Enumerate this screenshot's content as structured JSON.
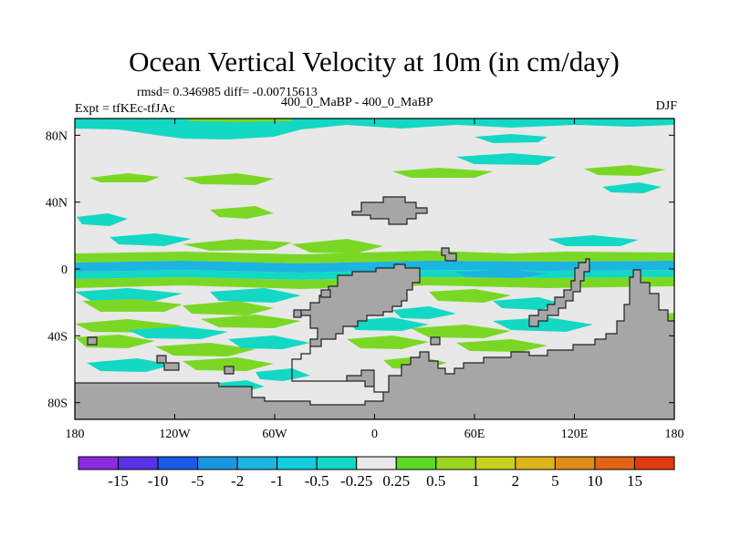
{
  "title": "Ocean Vertical Velocity at 10m (in cm/day)",
  "stats_line": "rmsd= 0.346985 diff= -0.00715613",
  "experiment": "Expt = tfKEc-tfJAc",
  "periods": "400_0_MaBP - 400_0_MaBP",
  "season": "DJF",
  "map": {
    "lon_range": [
      -180,
      180
    ],
    "lat_range": [
      -90,
      90
    ],
    "x_ticks": [
      {
        "lon": -180,
        "label": "180"
      },
      {
        "lon": -120,
        "label": "120W"
      },
      {
        "lon": -60,
        "label": "60W"
      },
      {
        "lon": 0,
        "label": "0"
      },
      {
        "lon": 60,
        "label": "60E"
      },
      {
        "lon": 120,
        "label": "120E"
      },
      {
        "lon": 180,
        "label": "180"
      }
    ],
    "y_ticks": [
      {
        "lat": 80,
        "label": "80N"
      },
      {
        "lat": 40,
        "label": "40N"
      },
      {
        "lat": 0,
        "label": "0"
      },
      {
        "lat": -40,
        "label": "40S"
      },
      {
        "lat": -80,
        "label": "80S"
      }
    ],
    "colors": {
      "land": "#a6a6a6",
      "background": "#e8e8e8",
      "weak_neg": "#12d8c4",
      "mid_neg": "#1cb4e0",
      "strong_neg": "#1874e8",
      "weak_pos": "#7ad825",
      "mid_pos": "#c8d21c"
    }
  },
  "colorbar": {
    "labels": [
      "-15",
      "-10",
      "-5",
      "-2",
      "-1",
      "-0.5",
      "-0.25",
      "0.25",
      "0.5",
      "1",
      "2",
      "5",
      "10",
      "15"
    ],
    "colors": [
      "#8a2be2",
      "#5a32e6",
      "#1a5ae8",
      "#1896e0",
      "#1cb4e0",
      "#12cce0",
      "#12d8c4",
      "#e8e8e8",
      "#5cd825",
      "#9ad41f",
      "#c8d21c",
      "#ddb418",
      "#e08c18",
      "#e06414",
      "#e03a0e"
    ]
  }
}
